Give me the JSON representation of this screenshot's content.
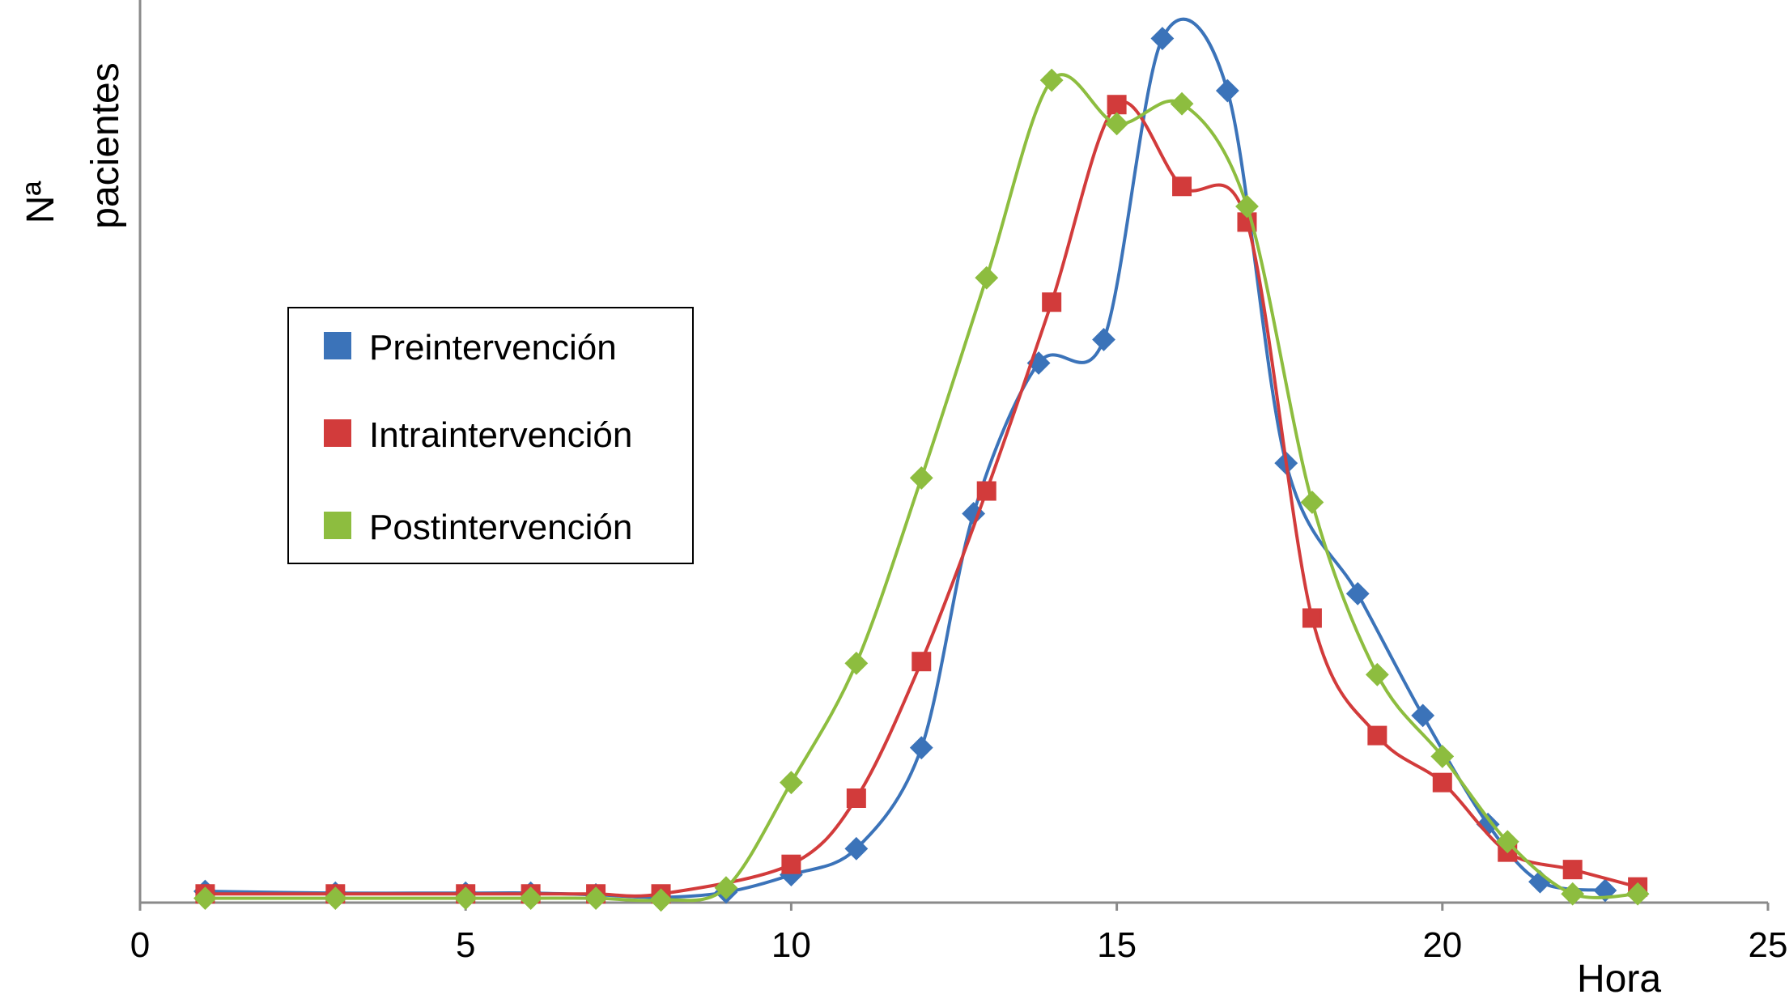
{
  "chart_data": {
    "type": "line",
    "title": "",
    "xlabel": "Hora",
    "ylabel_line1": "Nª",
    "ylabel_line2": "pacientes",
    "xlim": [
      0,
      25
    ],
    "ylim": [
      0,
      1
    ],
    "x_ticks": [
      "0",
      "5",
      "10",
      "15",
      "20",
      "25"
    ],
    "grid": false,
    "legend_position": "center-left",
    "series": [
      {
        "name": "Preintervención",
        "color": "#3b73b9",
        "marker": "diamond",
        "points": [
          [
            1,
            0.013
          ],
          [
            3,
            0.011
          ],
          [
            5,
            0.011
          ],
          [
            6,
            0.011
          ],
          [
            7,
            0.009
          ],
          [
            8,
            0.006
          ],
          [
            9,
            0.012
          ],
          [
            10,
            0.032
          ],
          [
            11,
            0.062
          ],
          [
            12,
            0.178
          ],
          [
            12.8,
            0.447
          ],
          [
            13.8,
            0.62
          ],
          [
            14.8,
            0.647
          ],
          [
            15.7,
            0.993
          ],
          [
            16.7,
            0.933
          ],
          [
            17.6,
            0.505
          ],
          [
            18.7,
            0.355
          ],
          [
            19.7,
            0.215
          ],
          [
            20.7,
            0.09
          ],
          [
            21.5,
            0.024
          ],
          [
            22.5,
            0.014
          ]
        ]
      },
      {
        "name": "Intraintervención",
        "color": "#d23b3b",
        "marker": "square",
        "points": [
          [
            1,
            0.01
          ],
          [
            3,
            0.01
          ],
          [
            5,
            0.01
          ],
          [
            6,
            0.01
          ],
          [
            7,
            0.01
          ],
          [
            8,
            0.01
          ],
          [
            10,
            0.044
          ],
          [
            11,
            0.12
          ],
          [
            12,
            0.277
          ],
          [
            13,
            0.473
          ],
          [
            14,
            0.69
          ],
          [
            15,
            0.917
          ],
          [
            16,
            0.823
          ],
          [
            17,
            0.782
          ],
          [
            18,
            0.327
          ],
          [
            19,
            0.192
          ],
          [
            20,
            0.138
          ],
          [
            21,
            0.058
          ],
          [
            22,
            0.038
          ],
          [
            23,
            0.018
          ]
        ]
      },
      {
        "name": "Postintervención",
        "color": "#8dbd3f",
        "marker": "diamond",
        "points": [
          [
            1,
            0.005
          ],
          [
            3,
            0.005
          ],
          [
            5,
            0.005
          ],
          [
            6,
            0.005
          ],
          [
            7,
            0.005
          ],
          [
            8,
            0.003
          ],
          [
            9,
            0.017
          ],
          [
            10,
            0.138
          ],
          [
            11,
            0.275
          ],
          [
            12,
            0.488
          ],
          [
            13,
            0.718
          ],
          [
            14,
            0.945
          ],
          [
            15,
            0.895
          ],
          [
            16,
            0.918
          ],
          [
            17,
            0.8
          ],
          [
            18,
            0.46
          ],
          [
            19,
            0.262
          ],
          [
            20,
            0.168
          ],
          [
            21,
            0.07
          ],
          [
            22,
            0.01
          ],
          [
            23,
            0.01
          ]
        ]
      }
    ]
  }
}
